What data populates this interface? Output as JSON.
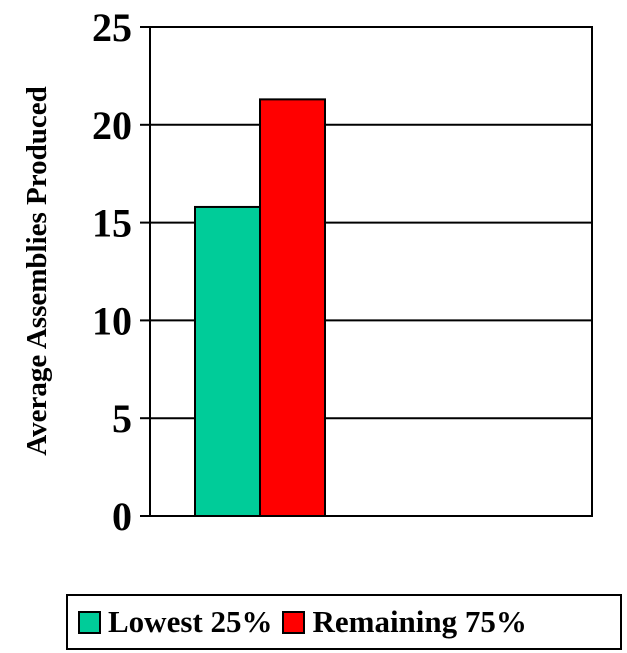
{
  "chart_data": {
    "type": "bar",
    "categories": [
      ""
    ],
    "series": [
      {
        "name": "Lowest 25%",
        "values": [
          15.8
        ],
        "color": "#00CC99"
      },
      {
        "name": "Remaining 75%",
        "values": [
          21.3
        ],
        "color": "#FF0000"
      }
    ],
    "title": "",
    "xlabel": "",
    "ylabel": "Average Assemblies Produced",
    "ylim": [
      0,
      25
    ],
    "yticks": [
      "0",
      "5",
      "10",
      "15",
      "20",
      "25"
    ],
    "grid": true,
    "legend_position": "bottom"
  }
}
